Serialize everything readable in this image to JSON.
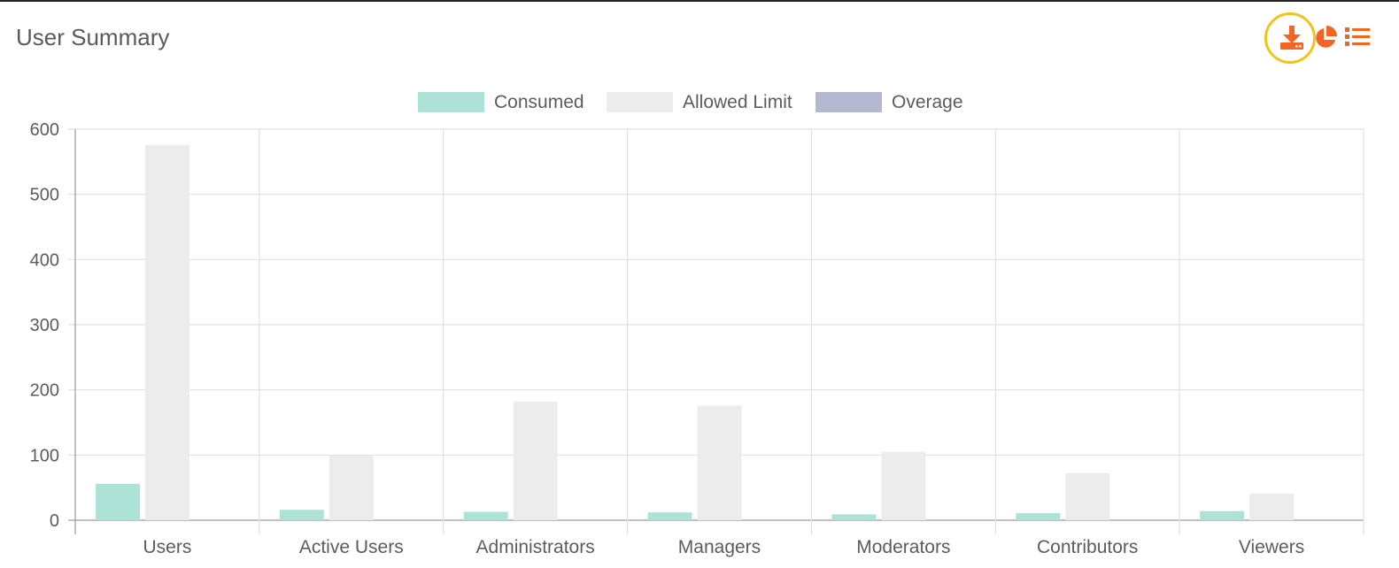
{
  "panel": {
    "title": "User Summary"
  },
  "toolbar": {
    "download_icon": "download-icon",
    "pie_icon": "pie-chart-icon",
    "list_icon": "list-icon",
    "accent_color": "#f26522",
    "highlight_color": "#f2c41b"
  },
  "chart_data": {
    "type": "bar",
    "title": "",
    "xlabel": "",
    "ylabel": "",
    "ylim": [
      0,
      600
    ],
    "yticks": [
      0,
      100,
      200,
      300,
      400,
      500,
      600
    ],
    "grid": true,
    "legend_position": "top-center",
    "categories": [
      "Users",
      "Active Users",
      "Administrators",
      "Managers",
      "Moderators",
      "Contributors",
      "Viewers"
    ],
    "series": [
      {
        "name": "Consumed",
        "color": "#ade3d6",
        "values": [
          56,
          16,
          13,
          12,
          9,
          11,
          14
        ]
      },
      {
        "name": "Allowed Limit",
        "color": "#ececec",
        "values": [
          576,
          99,
          182,
          176,
          105,
          72,
          41
        ]
      },
      {
        "name": "Overage",
        "color": "#b5b8d1",
        "values": [
          0,
          0,
          0,
          0,
          0,
          0,
          0
        ]
      }
    ]
  }
}
